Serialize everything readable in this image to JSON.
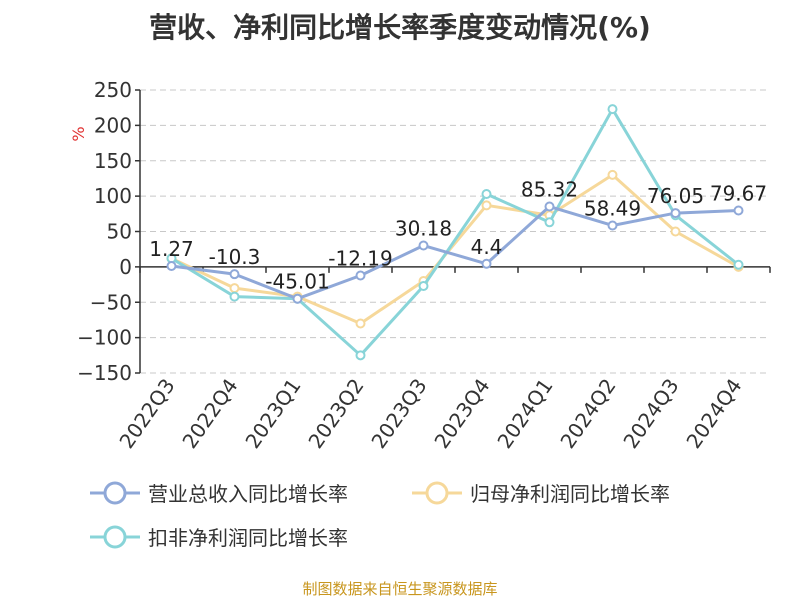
{
  "title": "营收、净利同比增长率季度变动情况(%)",
  "source": "制图数据来自恒生聚源数据库",
  "colors": {
    "background": "#ffffff",
    "grid": "#c8c8c8",
    "axis": "#333333",
    "unit": "#e03030",
    "source": "#c8961e"
  },
  "chart_data": {
    "type": "line",
    "title": "营收、净利同比增长率季度变动情况(%)",
    "ylabel": "%",
    "ylim": [
      -150,
      250
    ],
    "yticks": [
      250,
      200,
      150,
      100,
      50,
      0,
      -50,
      -100,
      -150
    ],
    "grid": true,
    "legend_position": "bottom",
    "categories": [
      "2022Q3",
      "2022Q4",
      "2023Q1",
      "2023Q2",
      "2023Q3",
      "2023Q4",
      "2024Q1",
      "2024Q2",
      "2024Q3",
      "2024Q4"
    ],
    "series": [
      {
        "name": "营业总收入同比增长率",
        "color": "#8fa8d8",
        "values": [
          1.27,
          -10.3,
          -45.01,
          -12.19,
          30.18,
          4.4,
          85.32,
          58.49,
          76.05,
          79.67
        ],
        "labels": [
          "1.27",
          "-10.3",
          "-45.01",
          "-12.19",
          "30.18",
          "4.4",
          "85.32",
          "58.49",
          "76.05",
          "79.67"
        ]
      },
      {
        "name": "归母净利润同比增长率",
        "color": "#f6d89a",
        "values": [
          12,
          -30,
          -42,
          -80,
          -20,
          87,
          73,
          130,
          50,
          0
        ]
      },
      {
        "name": "扣非净利润同比增长率",
        "color": "#88d4d8",
        "values": [
          12,
          -42,
          -45,
          -125,
          -27,
          103,
          63,
          223,
          73,
          3
        ]
      }
    ]
  }
}
